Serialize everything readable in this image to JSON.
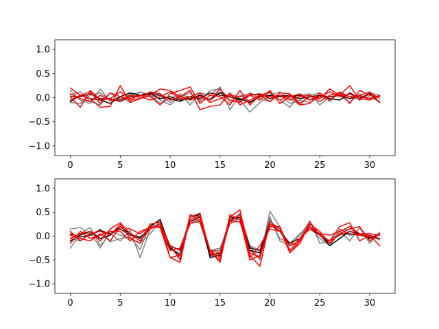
{
  "chart_data": [
    {
      "type": "line",
      "title": "",
      "xlabel": "",
      "ylabel": "",
      "xlim": [
        -1.55,
        32.55
      ],
      "ylim": [
        -1.2,
        1.2
      ],
      "xticks": [
        0,
        5,
        10,
        15,
        20,
        25,
        30
      ],
      "yticks": [
        -1.0,
        -0.5,
        0.0,
        0.5,
        1.0
      ],
      "xtick_labels": [
        "0",
        "5",
        "10",
        "15",
        "20",
        "25",
        "30"
      ],
      "ytick_labels": [
        "−1.0",
        "−0.5",
        "0.0",
        "0.5",
        "1.0"
      ],
      "grid": false,
      "x": [
        0,
        1,
        2,
        3,
        4,
        5,
        6,
        7,
        8,
        9,
        10,
        11,
        12,
        13,
        14,
        15,
        16,
        17,
        18,
        19,
        20,
        21,
        22,
        23,
        24,
        25,
        26,
        27,
        28,
        29,
        30,
        31
      ],
      "series": [
        {
          "color": "#808080",
          "values": [
            0.15,
            -0.05,
            -0.12,
            0.18,
            -0.08,
            0.02,
            -0.1,
            0.12,
            0.05,
            -0.12,
            -0.02,
            0.08,
            -0.15,
            0.1,
            0.05,
            0.22,
            -0.25,
            0.05,
            -0.08,
            0.02,
            0.1,
            -0.05,
            -0.2,
            0.05,
            0.08,
            -0.15,
            0.02,
            0.05,
            -0.1,
            0.08,
            0.02,
            -0.08
          ]
        },
        {
          "color": "#808080",
          "values": [
            0.05,
            0.12,
            -0.08,
            -0.15,
            0.1,
            -0.05,
            0.08,
            -0.02,
            0.12,
            -0.05,
            -0.15,
            0.02,
            0.1,
            -0.08,
            0.15,
            0.18,
            -0.1,
            -0.05,
            -0.3,
            -0.1,
            0.05,
            0.12,
            -0.02,
            -0.15,
            0.05,
            0.1,
            -0.08,
            0.12,
            0.02,
            -0.05,
            0.1,
            0.05
          ]
        },
        {
          "color": "#808080",
          "values": [
            -0.1,
            -0.12,
            0.05,
            0.1,
            -0.05,
            -0.02,
            0.05,
            0.12,
            0.02,
            0.05,
            -0.1,
            0.05,
            0.02,
            -0.05,
            -0.02,
            0.12,
            0.02,
            -0.08,
            0.1,
            -0.02,
            -0.08,
            0.05,
            -0.12,
            -0.05,
            -0.1,
            0.02,
            -0.05,
            0.08,
            -0.02,
            0.05,
            0.12,
            -0.02
          ]
        },
        {
          "color": "#000000",
          "values": [
            -0.08,
            0.05,
            -0.02,
            -0.05,
            -0.12,
            0.02,
            0.1,
            0.05,
            0.08,
            -0.02,
            0.02,
            -0.05,
            -0.02,
            0.05,
            -0.05,
            0.1,
            0.02,
            -0.02,
            -0.1,
            0.02,
            0.05,
            0.02,
            0.05,
            -0.02,
            0.02,
            0.05,
            -0.02,
            -0.05,
            0.1,
            -0.02,
            0.08,
            -0.1
          ]
        },
        {
          "color": "#4a0000",
          "values": [
            0.02,
            0.02,
            0.08,
            -0.02,
            -0.02,
            -0.08,
            0.02,
            0.05,
            0.1,
            0.05,
            -0.02,
            -0.08,
            0.02,
            -0.02,
            0.1,
            0.05,
            0.02,
            -0.05,
            0.05,
            0.08,
            -0.02,
            0.05,
            0.02,
            0.05,
            -0.05,
            0.05,
            0.02,
            0.05,
            -0.02,
            0.02,
            -0.02,
            0.02
          ]
        },
        {
          "color": "#ff0000",
          "values": [
            0.2,
            0.05,
            -0.02,
            -0.2,
            -0.18,
            0.25,
            -0.1,
            -0.02,
            0.05,
            0.18,
            0.15,
            0.02,
            0.15,
            -0.25,
            -0.18,
            -0.15,
            0.1,
            -0.15,
            -0.05,
            0.05,
            -0.08,
            0.1,
            0.08,
            -0.12,
            0.02,
            -0.02,
            0.18,
            0.05,
            0.25,
            -0.05,
            0.12,
            -0.1
          ]
        },
        {
          "color": "#ff0000",
          "values": [
            0.02,
            -0.2,
            0.15,
            -0.05,
            -0.02,
            0.12,
            -0.02,
            0.05,
            0.02,
            -0.15,
            0.08,
            0.15,
            0.22,
            -0.12,
            0.05,
            0.02,
            -0.15,
            0.15,
            -0.15,
            0.05,
            0.12,
            -0.05,
            0.05,
            -0.15,
            -0.12,
            0.1,
            -0.05,
            0.12,
            -0.12,
            0.15,
            0.05,
            0.02
          ]
        },
        {
          "color": "#ff0000",
          "values": [
            -0.05,
            0.05,
            0.12,
            -0.12,
            0.1,
            0.02,
            -0.05,
            -0.02,
            0.12,
            0.08,
            -0.05,
            0.02,
            -0.05,
            0.02,
            -0.05,
            0.18,
            -0.05,
            -0.1,
            0.05,
            -0.05,
            0.15,
            -0.12,
            0.02,
            0.08,
            -0.05,
            0.02,
            0.12,
            0.02,
            0.08,
            -0.02,
            -0.05,
            0.05
          ]
        },
        {
          "color": "#ff0000",
          "values": [
            0.08,
            -0.02,
            -0.08,
            0.05,
            -0.05,
            -0.05,
            0.05,
            0.02,
            -0.05,
            0.02,
            0.12,
            -0.02,
            0.02,
            0.1,
            -0.1,
            -0.02,
            0.05,
            0.02,
            0.08,
            0.05,
            0.02,
            0.05,
            -0.05,
            0.02,
            0.05,
            -0.08,
            0.05,
            0.1,
            0.02,
            0.05,
            -0.02,
            0.02
          ]
        }
      ]
    },
    {
      "type": "line",
      "title": "",
      "xlabel": "",
      "ylabel": "",
      "xlim": [
        -1.55,
        32.55
      ],
      "ylim": [
        -1.2,
        1.2
      ],
      "xticks": [
        0,
        5,
        10,
        15,
        20,
        25,
        30
      ],
      "yticks": [
        -1.0,
        -0.5,
        0.0,
        0.5,
        1.0
      ],
      "xtick_labels": [
        "0",
        "5",
        "10",
        "15",
        "20",
        "25",
        "30"
      ],
      "ytick_labels": [
        "−1.0",
        "−0.5",
        "0.0",
        "0.5",
        "1.0"
      ],
      "grid": false,
      "x": [
        0,
        1,
        2,
        3,
        4,
        5,
        6,
        7,
        8,
        9,
        10,
        11,
        12,
        13,
        14,
        15,
        16,
        17,
        18,
        19,
        20,
        21,
        22,
        23,
        24,
        25,
        26,
        27,
        28,
        29,
        30,
        31
      ],
      "series": [
        {
          "color": "#808080",
          "values": [
            -0.25,
            0.05,
            0.18,
            -0.2,
            0.05,
            -0.1,
            0.12,
            -0.45,
            0.15,
            0.3,
            -0.28,
            -0.35,
            0.3,
            0.28,
            -0.42,
            -0.38,
            0.3,
            0.48,
            -0.2,
            -0.5,
            0.52,
            0.2,
            -0.3,
            -0.05,
            0.32,
            -0.15,
            -0.1,
            0.1,
            -0.1,
            0.18,
            -0.15,
            0.08
          ]
        },
        {
          "color": "#808080",
          "values": [
            0.15,
            0.18,
            0.02,
            0.15,
            -0.12,
            -0.05,
            -0.02,
            -0.28,
            0.25,
            0.2,
            -0.3,
            -0.25,
            0.35,
            0.3,
            -0.3,
            -0.25,
            0.25,
            0.4,
            -0.2,
            -0.3,
            0.35,
            -0.05,
            -0.15,
            0.05,
            0.2,
            -0.05,
            -0.2,
            0.15,
            0.02,
            0.05,
            0.02,
            -0.08
          ]
        },
        {
          "color": "#808080",
          "values": [
            -0.05,
            -0.1,
            0.08,
            -0.25,
            0.1,
            0.02,
            -0.05,
            -0.15,
            0.05,
            0.3,
            -0.2,
            -0.45,
            0.45,
            0.4,
            -0.3,
            -0.3,
            0.35,
            0.3,
            -0.3,
            -0.45,
            0.4,
            -0.1,
            -0.2,
            0.02,
            0.3,
            0.02,
            -0.2,
            0.1,
            0.15,
            0.05,
            -0.05,
            0.05
          ]
        },
        {
          "color": "#000000",
          "values": [
            -0.1,
            0.02,
            0.1,
            -0.05,
            0.02,
            0.2,
            0.05,
            -0.05,
            0.2,
            0.35,
            -0.25,
            -0.4,
            0.4,
            0.45,
            -0.45,
            -0.4,
            0.4,
            0.35,
            -0.3,
            -0.35,
            0.3,
            0.15,
            -0.2,
            -0.1,
            0.2,
            0.05,
            -0.2,
            -0.05,
            0.1,
            0.05,
            -0.05,
            0.05
          ]
        },
        {
          "color": "#4a0000",
          "values": [
            0.05,
            -0.02,
            0.02,
            0.12,
            0.05,
            0.15,
            0.02,
            -0.02,
            0.15,
            0.25,
            -0.2,
            -0.3,
            0.3,
            0.4,
            -0.4,
            -0.35,
            0.35,
            0.4,
            -0.25,
            -0.3,
            0.25,
            0.1,
            -0.15,
            -0.05,
            0.15,
            0.02,
            -0.15,
            0.05,
            0.05,
            0.02,
            -0.02,
            -0.05
          ]
        },
        {
          "color": "#ff0000",
          "values": [
            0.1,
            -0.1,
            0.05,
            0.1,
            0.02,
            0.25,
            -0.05,
            -0.15,
            0.25,
            0.3,
            -0.45,
            -0.55,
            0.4,
            0.48,
            -0.35,
            -0.5,
            0.45,
            0.35,
            -0.5,
            -0.4,
            0.2,
            0.2,
            -0.35,
            -0.1,
            0.3,
            0.02,
            -0.1,
            0.2,
            0.28,
            -0.1,
            0.02,
            -0.2
          ]
        },
        {
          "color": "#ff0000",
          "values": [
            -0.05,
            0.05,
            0.1,
            -0.1,
            0.15,
            0.28,
            0.05,
            -0.1,
            0.15,
            0.25,
            -0.2,
            -0.5,
            0.45,
            0.3,
            -0.3,
            -0.55,
            0.4,
            0.55,
            -0.4,
            -0.63,
            0.3,
            0.15,
            -0.35,
            -0.15,
            0.25,
            0.1,
            -0.15,
            0.05,
            0.15,
            0.2,
            -0.1,
            0.05
          ]
        },
        {
          "color": "#ff0000",
          "values": [
            0.02,
            -0.05,
            -0.1,
            0.05,
            -0.1,
            0.2,
            0.15,
            0.05,
            0.2,
            0.18,
            -0.45,
            -0.4,
            0.35,
            0.42,
            -0.3,
            -0.45,
            0.3,
            0.3,
            -0.35,
            -0.45,
            0.25,
            0.15,
            -0.3,
            -0.05,
            0.15,
            0.05,
            0.02,
            0.1,
            0.2,
            0.05,
            0.05,
            0.02
          ]
        },
        {
          "color": "#ff0000",
          "values": [
            -0.15,
            0.1,
            -0.05,
            0.02,
            0.1,
            0.1,
            -0.1,
            0.1,
            0.18,
            0.2,
            -0.3,
            -0.25,
            0.25,
            0.35,
            -0.3,
            -0.35,
            0.3,
            0.45,
            -0.45,
            -0.2,
            0.15,
            0.1,
            -0.2,
            -0.1,
            0.2,
            0.02,
            -0.1,
            0.02,
            0.1,
            0.02,
            0.02,
            -0.05
          ]
        }
      ]
    }
  ]
}
